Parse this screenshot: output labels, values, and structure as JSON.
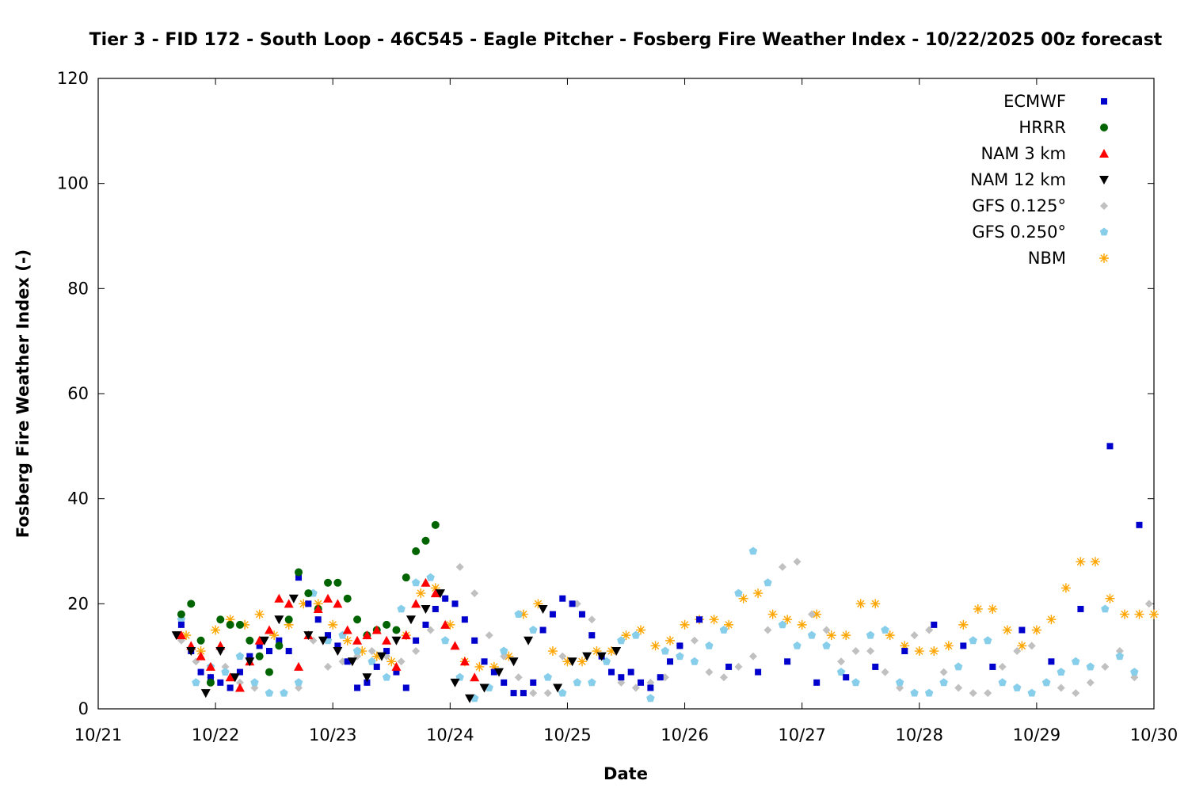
{
  "chart_data": {
    "type": "scatter",
    "title": "Tier 3 - FID 172 - South Loop - 46C545 - Eagle Pitcher - Fosberg Fire Weather Index - 10/22/2025 00z forecast",
    "xlabel": "Date",
    "ylabel": "Fosberg Fire Weather Index (-)",
    "xlim": [
      "2025-10-21 00:00",
      "2025-10-30 00:00"
    ],
    "ylim": [
      0,
      120
    ],
    "x_ticks": [
      "10/21",
      "10/22",
      "10/23",
      "10/24",
      "10/25",
      "10/26",
      "10/27",
      "10/28",
      "10/29",
      "10/30"
    ],
    "y_ticks": [
      "0",
      "20",
      "40",
      "60",
      "80",
      "100",
      "120"
    ],
    "grid": false,
    "legend_position": "top-right",
    "series": [
      {
        "name": "ECMWF",
        "marker": "square",
        "color": "#0000cc",
        "x": [
          "2025-10-21 17:00",
          "2025-10-21 19:00",
          "2025-10-21 21:00",
          "2025-10-21 23:00",
          "2025-10-22 01:00",
          "2025-10-22 03:00",
          "2025-10-22 05:00",
          "2025-10-22 07:00",
          "2025-10-22 09:00",
          "2025-10-22 11:00",
          "2025-10-22 13:00",
          "2025-10-22 15:00",
          "2025-10-22 17:00",
          "2025-10-22 19:00",
          "2025-10-22 21:00",
          "2025-10-22 23:00",
          "2025-10-23 01:00",
          "2025-10-23 03:00",
          "2025-10-23 05:00",
          "2025-10-23 07:00",
          "2025-10-23 09:00",
          "2025-10-23 11:00",
          "2025-10-23 13:00",
          "2025-10-23 15:00",
          "2025-10-23 17:00",
          "2025-10-23 19:00",
          "2025-10-23 21:00",
          "2025-10-23 23:00",
          "2025-10-24 01:00",
          "2025-10-24 03:00",
          "2025-10-24 05:00",
          "2025-10-24 07:00",
          "2025-10-24 09:00",
          "2025-10-24 11:00",
          "2025-10-24 13:00",
          "2025-10-24 15:00",
          "2025-10-24 17:00",
          "2025-10-24 19:00",
          "2025-10-24 21:00",
          "2025-10-24 23:00",
          "2025-10-25 01:00",
          "2025-10-25 03:00",
          "2025-10-25 05:00",
          "2025-10-25 07:00",
          "2025-10-25 09:00",
          "2025-10-25 11:00",
          "2025-10-25 13:00",
          "2025-10-25 15:00",
          "2025-10-25 17:00",
          "2025-10-25 19:00",
          "2025-10-25 21:00",
          "2025-10-25 23:00",
          "2025-10-26 03:00",
          "2025-10-26 09:00",
          "2025-10-26 15:00",
          "2025-10-26 21:00",
          "2025-10-27 03:00",
          "2025-10-27 09:00",
          "2025-10-27 15:00",
          "2025-10-27 21:00",
          "2025-10-28 03:00",
          "2025-10-28 09:00",
          "2025-10-28 15:00",
          "2025-10-28 21:00",
          "2025-10-29 03:00",
          "2025-10-29 09:00",
          "2025-10-29 15:00",
          "2025-10-29 21:00"
        ],
        "y": [
          16,
          11,
          7,
          6,
          5,
          4,
          7,
          10,
          12,
          11,
          13,
          11,
          25,
          20,
          17,
          14,
          12,
          9,
          4,
          5,
          8,
          11,
          7,
          4,
          13,
          16,
          19,
          21,
          20,
          17,
          13,
          9,
          7,
          5,
          3,
          3,
          5,
          15,
          18,
          21,
          20,
          18,
          14,
          10,
          7,
          6,
          7,
          5,
          4,
          6,
          9,
          12,
          17,
          8,
          7,
          9,
          5,
          6,
          8,
          11,
          16,
          12,
          8,
          15,
          9,
          19,
          50,
          35
        ]
      },
      {
        "name": "HRRR",
        "marker": "circle",
        "color": "#006400",
        "x": [
          "2025-10-21 17:00",
          "2025-10-21 19:00",
          "2025-10-21 21:00",
          "2025-10-21 23:00",
          "2025-10-22 01:00",
          "2025-10-22 03:00",
          "2025-10-22 05:00",
          "2025-10-22 07:00",
          "2025-10-22 09:00",
          "2025-10-22 11:00",
          "2025-10-22 13:00",
          "2025-10-22 15:00",
          "2025-10-22 17:00",
          "2025-10-22 19:00",
          "2025-10-22 21:00",
          "2025-10-22 23:00",
          "2025-10-23 01:00",
          "2025-10-23 03:00",
          "2025-10-23 05:00",
          "2025-10-23 07:00",
          "2025-10-23 09:00",
          "2025-10-23 11:00",
          "2025-10-23 13:00",
          "2025-10-23 15:00",
          "2025-10-23 17:00",
          "2025-10-23 19:00",
          "2025-10-23 21:00"
        ],
        "y": [
          18,
          20,
          13,
          5,
          17,
          16,
          16,
          13,
          10,
          7,
          12,
          17,
          26,
          22,
          19,
          24,
          24,
          21,
          17,
          14,
          15,
          16,
          15,
          25,
          30,
          32,
          35
        ]
      },
      {
        "name": "NAM 3 km",
        "marker": "triangle-up",
        "color": "#ff0000",
        "x": [
          "2025-10-21 17:00",
          "2025-10-21 19:00",
          "2025-10-21 21:00",
          "2025-10-21 23:00",
          "2025-10-22 01:00",
          "2025-10-22 03:00",
          "2025-10-22 05:00",
          "2025-10-22 07:00",
          "2025-10-22 09:00",
          "2025-10-22 11:00",
          "2025-10-22 13:00",
          "2025-10-22 15:00",
          "2025-10-22 17:00",
          "2025-10-22 19:00",
          "2025-10-22 21:00",
          "2025-10-22 23:00",
          "2025-10-23 01:00",
          "2025-10-23 03:00",
          "2025-10-23 05:00",
          "2025-10-23 07:00",
          "2025-10-23 09:00",
          "2025-10-23 11:00",
          "2025-10-23 13:00",
          "2025-10-23 15:00",
          "2025-10-23 17:00",
          "2025-10-23 19:00",
          "2025-10-23 21:00",
          "2025-10-23 23:00",
          "2025-10-24 01:00",
          "2025-10-24 03:00",
          "2025-10-24 05:00"
        ],
        "y": [
          14,
          12,
          10,
          8,
          12,
          6,
          4,
          9,
          13,
          15,
          21,
          20,
          8,
          14,
          19,
          21,
          20,
          15,
          13,
          14,
          15,
          13,
          8,
          14,
          20,
          24,
          22,
          16,
          12,
          9,
          6
        ]
      },
      {
        "name": "NAM 12 km",
        "marker": "triangle-down",
        "color": "#000000",
        "x": [
          "2025-10-21 16:00",
          "2025-10-21 19:00",
          "2025-10-21 22:00",
          "2025-10-22 01:00",
          "2025-10-22 04:00",
          "2025-10-22 07:00",
          "2025-10-22 10:00",
          "2025-10-22 13:00",
          "2025-10-22 16:00",
          "2025-10-22 19:00",
          "2025-10-22 22:00",
          "2025-10-23 01:00",
          "2025-10-23 04:00",
          "2025-10-23 07:00",
          "2025-10-23 10:00",
          "2025-10-23 13:00",
          "2025-10-23 16:00",
          "2025-10-23 19:00",
          "2025-10-23 22:00",
          "2025-10-24 01:00",
          "2025-10-24 04:00",
          "2025-10-24 07:00",
          "2025-10-24 10:00",
          "2025-10-24 13:00",
          "2025-10-24 16:00",
          "2025-10-24 19:00",
          "2025-10-24 22:00",
          "2025-10-25 01:00",
          "2025-10-25 04:00",
          "2025-10-25 07:00",
          "2025-10-25 10:00"
        ],
        "y": [
          14,
          11,
          3,
          11,
          6,
          9,
          13,
          17,
          21,
          14,
          13,
          11,
          9,
          6,
          10,
          13,
          17,
          19,
          22,
          5,
          2,
          4,
          7,
          9,
          13,
          19,
          4,
          9,
          10,
          10,
          11
        ]
      },
      {
        "name": "GFS 0.125°",
        "marker": "diamond",
        "color": "#c0c0c0",
        "x": [
          "2025-10-21 17:00",
          "2025-10-21 20:00",
          "2025-10-21 23:00",
          "2025-10-22 02:00",
          "2025-10-22 05:00",
          "2025-10-22 08:00",
          "2025-10-22 11:00",
          "2025-10-22 14:00",
          "2025-10-22 17:00",
          "2025-10-22 20:00",
          "2025-10-22 23:00",
          "2025-10-23 02:00",
          "2025-10-23 05:00",
          "2025-10-23 08:00",
          "2025-10-23 11:00",
          "2025-10-23 14:00",
          "2025-10-23 17:00",
          "2025-10-23 20:00",
          "2025-10-23 23:00",
          "2025-10-24 02:00",
          "2025-10-24 05:00",
          "2025-10-24 08:00",
          "2025-10-24 11:00",
          "2025-10-24 14:00",
          "2025-10-24 17:00",
          "2025-10-24 20:00",
          "2025-10-24 23:00",
          "2025-10-25 02:00",
          "2025-10-25 05:00",
          "2025-10-25 08:00",
          "2025-10-25 11:00",
          "2025-10-25 14:00",
          "2025-10-25 17:00",
          "2025-10-25 20:00",
          "2025-10-25 23:00",
          "2025-10-26 02:00",
          "2025-10-26 05:00",
          "2025-10-26 08:00",
          "2025-10-26 11:00",
          "2025-10-26 14:00",
          "2025-10-26 17:00",
          "2025-10-26 20:00",
          "2025-10-26 23:00",
          "2025-10-27 02:00",
          "2025-10-27 05:00",
          "2025-10-27 08:00",
          "2025-10-27 11:00",
          "2025-10-27 14:00",
          "2025-10-27 17:00",
          "2025-10-27 20:00",
          "2025-10-27 23:00",
          "2025-10-28 02:00",
          "2025-10-28 05:00",
          "2025-10-28 08:00",
          "2025-10-28 11:00",
          "2025-10-28 14:00",
          "2025-10-28 17:00",
          "2025-10-28 20:00",
          "2025-10-28 23:00",
          "2025-10-29 02:00",
          "2025-10-29 05:00",
          "2025-10-29 08:00",
          "2025-10-29 11:00",
          "2025-10-29 14:00",
          "2025-10-29 17:00",
          "2025-10-29 20:00",
          "2025-10-29 23:00"
        ],
        "y": [
          13,
          9,
          6,
          8,
          5,
          4,
          3,
          3,
          4,
          13,
          8,
          9,
          10,
          11,
          10,
          9,
          11,
          15,
          21,
          27,
          22,
          14,
          10,
          6,
          3,
          3,
          10,
          20,
          17,
          9,
          5,
          4,
          5,
          6,
          12,
          13,
          7,
          6,
          8,
          10,
          15,
          27,
          28,
          18,
          15,
          9,
          11,
          11,
          7,
          4,
          14,
          15,
          7,
          4,
          3,
          3,
          8,
          11,
          12,
          5,
          4,
          3,
          5,
          8,
          11,
          6,
          20
        ]
      },
      {
        "name": "GFS 0.250°",
        "marker": "pentagon",
        "color": "#87ceeb",
        "x": [
          "2025-10-21 17:00",
          "2025-10-21 20:00",
          "2025-10-21 23:00",
          "2025-10-22 02:00",
          "2025-10-22 05:00",
          "2025-10-22 08:00",
          "2025-10-22 11:00",
          "2025-10-22 14:00",
          "2025-10-22 17:00",
          "2025-10-22 20:00",
          "2025-10-22 23:00",
          "2025-10-23 02:00",
          "2025-10-23 05:00",
          "2025-10-23 08:00",
          "2025-10-23 11:00",
          "2025-10-23 14:00",
          "2025-10-23 17:00",
          "2025-10-23 20:00",
          "2025-10-23 23:00",
          "2025-10-24 02:00",
          "2025-10-24 05:00",
          "2025-10-24 08:00",
          "2025-10-24 11:00",
          "2025-10-24 14:00",
          "2025-10-24 17:00",
          "2025-10-24 20:00",
          "2025-10-24 23:00",
          "2025-10-25 02:00",
          "2025-10-25 05:00",
          "2025-10-25 08:00",
          "2025-10-25 11:00",
          "2025-10-25 14:00",
          "2025-10-25 17:00",
          "2025-10-25 20:00",
          "2025-10-25 23:00",
          "2025-10-26 02:00",
          "2025-10-26 05:00",
          "2025-10-26 08:00",
          "2025-10-26 11:00",
          "2025-10-26 14:00",
          "2025-10-26 17:00",
          "2025-10-26 20:00",
          "2025-10-26 23:00",
          "2025-10-27 02:00",
          "2025-10-27 05:00",
          "2025-10-27 08:00",
          "2025-10-27 11:00",
          "2025-10-27 14:00",
          "2025-10-27 17:00",
          "2025-10-27 20:00",
          "2025-10-27 23:00",
          "2025-10-28 02:00",
          "2025-10-28 05:00",
          "2025-10-28 08:00",
          "2025-10-28 11:00",
          "2025-10-28 14:00",
          "2025-10-28 17:00",
          "2025-10-28 20:00",
          "2025-10-28 23:00",
          "2025-10-29 02:00",
          "2025-10-29 05:00",
          "2025-10-29 08:00",
          "2025-10-29 11:00",
          "2025-10-29 14:00",
          "2025-10-29 17:00",
          "2025-10-29 20:00"
        ],
        "y": [
          17,
          5,
          8,
          7,
          10,
          5,
          3,
          3,
          5,
          22,
          13,
          14,
          11,
          9,
          6,
          19,
          24,
          25,
          13,
          6,
          2,
          4,
          11,
          18,
          15,
          6,
          3,
          5,
          5,
          9,
          13,
          14,
          2,
          11,
          10,
          9,
          12,
          15,
          22,
          30,
          24,
          16,
          12,
          14,
          12,
          7,
          5,
          14,
          15,
          5,
          3,
          3,
          5,
          8,
          13,
          13,
          5,
          4,
          3,
          5,
          7,
          9,
          8,
          19,
          10,
          7
        ]
      },
      {
        "name": "NBM",
        "marker": "asterisk",
        "color": "#ffa500",
        "x": [
          "2025-10-21 18:00",
          "2025-10-21 21:00",
          "2025-10-22 00:00",
          "2025-10-22 03:00",
          "2025-10-22 06:00",
          "2025-10-22 09:00",
          "2025-10-22 12:00",
          "2025-10-22 15:00",
          "2025-10-22 18:00",
          "2025-10-22 21:00",
          "2025-10-23 00:00",
          "2025-10-23 03:00",
          "2025-10-23 06:00",
          "2025-10-23 09:00",
          "2025-10-23 12:00",
          "2025-10-23 15:00",
          "2025-10-23 18:00",
          "2025-10-23 21:00",
          "2025-10-24 00:00",
          "2025-10-24 03:00",
          "2025-10-24 06:00",
          "2025-10-24 09:00",
          "2025-10-24 12:00",
          "2025-10-24 15:00",
          "2025-10-24 18:00",
          "2025-10-24 21:00",
          "2025-10-25 00:00",
          "2025-10-25 03:00",
          "2025-10-25 06:00",
          "2025-10-25 09:00",
          "2025-10-25 12:00",
          "2025-10-25 15:00",
          "2025-10-25 18:00",
          "2025-10-25 21:00",
          "2025-10-26 00:00",
          "2025-10-26 03:00",
          "2025-10-26 06:00",
          "2025-10-26 09:00",
          "2025-10-26 12:00",
          "2025-10-26 15:00",
          "2025-10-26 18:00",
          "2025-10-26 21:00",
          "2025-10-27 00:00",
          "2025-10-27 03:00",
          "2025-10-27 06:00",
          "2025-10-27 09:00",
          "2025-10-27 12:00",
          "2025-10-27 15:00",
          "2025-10-27 18:00",
          "2025-10-27 21:00",
          "2025-10-28 00:00",
          "2025-10-28 03:00",
          "2025-10-28 06:00",
          "2025-10-28 09:00",
          "2025-10-28 12:00",
          "2025-10-28 15:00",
          "2025-10-28 18:00",
          "2025-10-28 21:00",
          "2025-10-29 00:00",
          "2025-10-29 03:00",
          "2025-10-29 06:00",
          "2025-10-29 09:00",
          "2025-10-29 12:00",
          "2025-10-29 15:00",
          "2025-10-29 18:00",
          "2025-10-29 21:00",
          "2025-10-30 00:00"
        ],
        "y": [
          14,
          11,
          15,
          17,
          16,
          18,
          14,
          16,
          20,
          20,
          16,
          13,
          11,
          10,
          9,
          14,
          22,
          23,
          16,
          9,
          8,
          8,
          10,
          18,
          20,
          11,
          9,
          9,
          11,
          11,
          14,
          15,
          12,
          13,
          16,
          17,
          17,
          16,
          21,
          22,
          18,
          17,
          16,
          18,
          14,
          14,
          20,
          20,
          14,
          12,
          11,
          11,
          12,
          16,
          19,
          19,
          15,
          12,
          15,
          17,
          23,
          28,
          28,
          21,
          18,
          18,
          18
        ]
      }
    ]
  }
}
